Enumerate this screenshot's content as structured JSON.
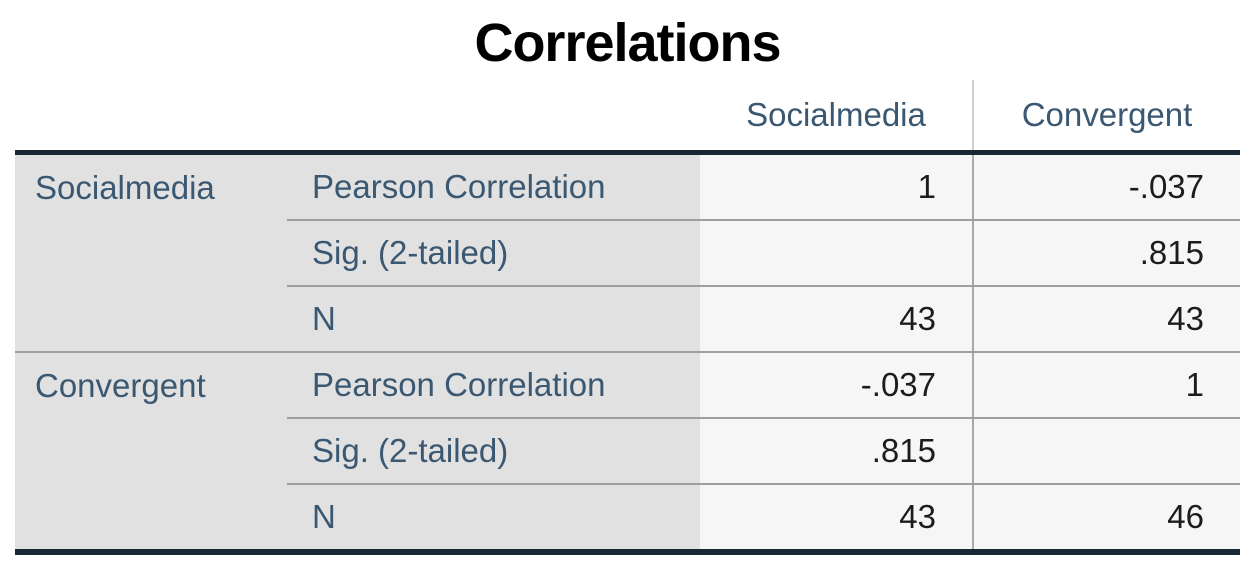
{
  "title": "Correlations",
  "table": {
    "column_headers": [
      "Socialmedia",
      "Convergent"
    ],
    "row_groups": [
      {
        "label": "Socialmedia",
        "rows": [
          {
            "label": "Pearson Correlation",
            "values": [
              "1",
              "-.037"
            ]
          },
          {
            "label": "Sig. (2-tailed)",
            "values": [
              "",
              ".815"
            ]
          },
          {
            "label": "N",
            "values": [
              "43",
              "43"
            ]
          }
        ]
      },
      {
        "label": "Convergent",
        "rows": [
          {
            "label": "Pearson Correlation",
            "values": [
              "-.037",
              "1"
            ]
          },
          {
            "label": "Sig. (2-tailed)",
            "values": [
              ".815",
              ""
            ]
          },
          {
            "label": "N",
            "values": [
              "43",
              "46"
            ]
          }
        ]
      }
    ]
  },
  "chart_data": {
    "type": "table",
    "title": "Correlations",
    "variables": [
      "Socialmedia",
      "Convergent"
    ],
    "measures": [
      "Pearson Correlation",
      "Sig. (2-tailed)",
      "N"
    ],
    "rows": [
      {
        "variable": "Socialmedia",
        "measure": "Pearson Correlation",
        "Socialmedia": 1,
        "Convergent": -0.037
      },
      {
        "variable": "Socialmedia",
        "measure": "Sig. (2-tailed)",
        "Socialmedia": null,
        "Convergent": 0.815
      },
      {
        "variable": "Socialmedia",
        "measure": "N",
        "Socialmedia": 43,
        "Convergent": 43
      },
      {
        "variable": "Convergent",
        "measure": "Pearson Correlation",
        "Socialmedia": -0.037,
        "Convergent": 1
      },
      {
        "variable": "Convergent",
        "measure": "Sig. (2-tailed)",
        "Socialmedia": 0.815,
        "Convergent": null
      },
      {
        "variable": "Convergent",
        "measure": "N",
        "Socialmedia": 43,
        "Convergent": 46
      }
    ]
  },
  "colors": {
    "thick_rule": "#1a2732",
    "thin_divider": "#9e9e9e",
    "stub_background": "#e2e1e1",
    "data_background": "#f6f6f7",
    "label_text": "#3a5872",
    "value_text": "#1c1c1c"
  }
}
